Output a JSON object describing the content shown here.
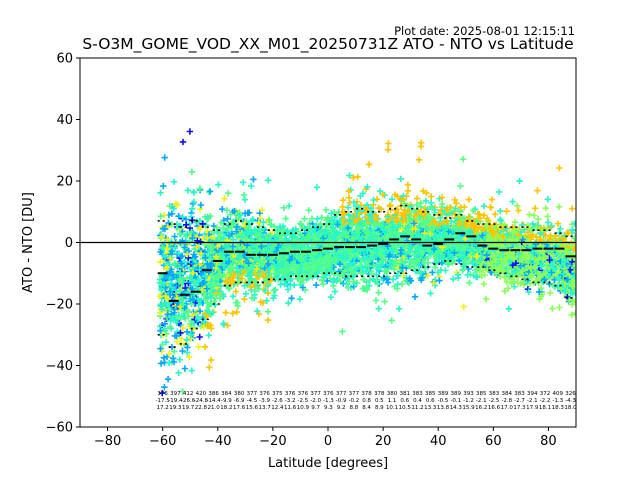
{
  "chart_data": {
    "type": "scatter",
    "title": "S-O3M_GOME_VOD_XX_M01_20250731Z ATO - NTO vs Latitude",
    "plot_date": "Plot date: 2025-08-01 12:15:11",
    "xlabel": "Latitude [degrees]",
    "ylabel": "ATO - NTO [DU]",
    "xlim": [
      -90,
      90
    ],
    "ylim": [
      -60,
      60
    ],
    "xticks": [
      -80,
      -60,
      -40,
      -20,
      0,
      20,
      40,
      60,
      80
    ],
    "yticks": [
      -60,
      -40,
      -20,
      0,
      20,
      40,
      60
    ],
    "reference_line_y": 0,
    "grid": false,
    "marker": "plus",
    "colors": {
      "blue": "#1010ee",
      "azure": "#00a8ff",
      "turquoise": "#2af5c8",
      "aquamarine": "#55ff88",
      "lime": "#8cff5a",
      "yellow": "#eef21a",
      "gold": "#ffc400",
      "mean": "#000000"
    },
    "bin_centers": [
      -60,
      -56,
      -52,
      -48,
      -44,
      -40,
      -36,
      -32,
      -28,
      -24,
      -20,
      -16,
      -12,
      -8,
      -4,
      0,
      4,
      8,
      12,
      16,
      20,
      24,
      28,
      32,
      36,
      40,
      44,
      48,
      52,
      56,
      60,
      64,
      68,
      72,
      76,
      80,
      84,
      88
    ],
    "bin_mean": [
      -10,
      -19,
      -17,
      -16,
      -9,
      -6,
      -3,
      -3,
      -4,
      -4,
      -4,
      -3.5,
      -3,
      -3,
      -2.5,
      -2,
      -1.5,
      -1.5,
      -1.5,
      -1,
      -0.5,
      1,
      2,
      1,
      -1,
      -0.5,
      1,
      3,
      2,
      -1,
      -2,
      -2.5,
      -2.5,
      -2.5,
      -2,
      -2,
      -2,
      -4.5
    ],
    "bin_upper": [
      7,
      6,
      5,
      7,
      5,
      4,
      6,
      7,
      6,
      5,
      4,
      3,
      3,
      4,
      5,
      6,
      9,
      10,
      11,
      10,
      10,
      11,
      12,
      11,
      10,
      9,
      8,
      9,
      7,
      6,
      6,
      5,
      5,
      5,
      4,
      4,
      3,
      2
    ],
    "bin_lower": [
      -30,
      -34,
      -33,
      -28,
      -25,
      -20,
      -14,
      -13,
      -13,
      -13,
      -12,
      -12,
      -11,
      -11,
      -11,
      -10,
      -10,
      -11,
      -11,
      -11,
      -11,
      -10,
      -10,
      -9,
      -8,
      -7,
      -6,
      -7,
      -8,
      -8,
      -9,
      -10,
      -11,
      -12,
      -13,
      -13,
      -14,
      -18
    ],
    "bin_label_rows": [
      [
        "376",
        "397",
        "412",
        "420",
        "386",
        "384",
        "380",
        "377",
        "376",
        "375",
        "376",
        "376",
        "377",
        "376",
        "377",
        "377",
        "378",
        "378",
        "380",
        "381",
        "383",
        "385",
        "389",
        "389",
        "393",
        "385",
        "383",
        "384",
        "383",
        "394",
        "372",
        "409",
        "326"
      ],
      [
        "-17.5",
        "-19.4",
        "-26.6",
        "-24.8",
        "-14.4",
        "-9.9",
        "-6.9",
        "-4.5",
        "-3.9",
        "-2.6",
        "-3.2",
        "-2.5",
        "-2.0",
        "-1.3",
        "-0.9",
        "-0.2",
        "0.8",
        "0.5",
        "1.1",
        "0.6",
        "0.4",
        "0.6",
        "-0.5",
        "-0.1",
        "-1.2",
        "-2.1",
        "-2.5",
        "-2.8",
        "-2.7",
        "-2.1",
        "-2.2",
        "-1.3",
        "-4.3"
      ],
      [
        "17.2",
        "19.3",
        "19.7",
        "22.8",
        "21.0",
        "18.2",
        "17.6",
        "15.6",
        "13.7",
        "12.4",
        "11.6",
        "10.9",
        "9.7",
        "9.3",
        "9.2",
        "8.8",
        "8.4",
        "8.9",
        "10.1",
        "10.5",
        "11.2",
        "13.3",
        "13.8",
        "14.3",
        "15.9",
        "16.2",
        "16.6",
        "17.0",
        "17.3",
        "17.9",
        "18.1",
        "18.3",
        "18.0"
      ]
    ]
  }
}
